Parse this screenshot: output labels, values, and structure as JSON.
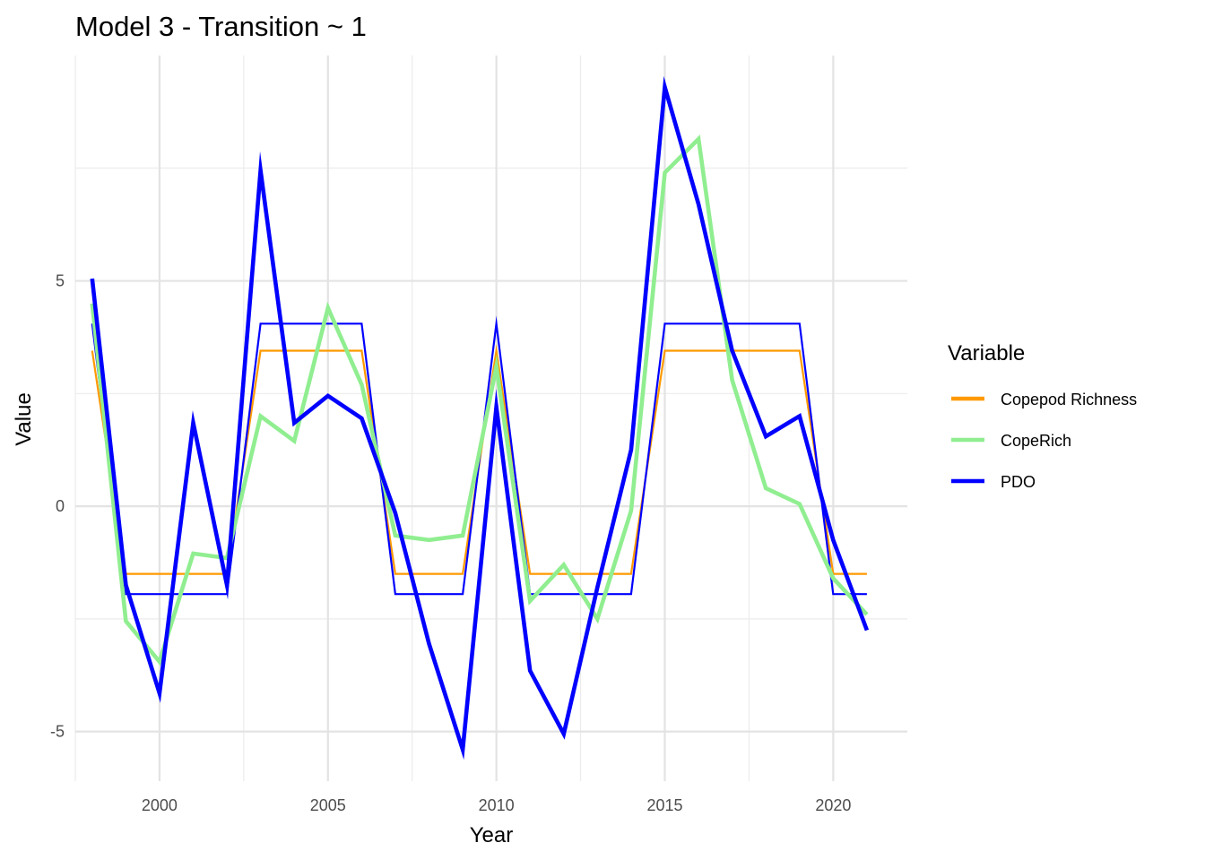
{
  "chart_data": {
    "type": "line",
    "title": "Model 3 - Transition ~ 1",
    "xlabel": "Year",
    "ylabel": "Value",
    "xlim": [
      1997.5,
      2022.2
    ],
    "ylim": [
      -6.1,
      10.0
    ],
    "x_ticks": [
      2000,
      2005,
      2010,
      2015,
      2020
    ],
    "x_tick_labels": [
      "2000",
      "2005",
      "2010",
      "2015",
      "2020"
    ],
    "y_ticks": [
      -5,
      0,
      5
    ],
    "y_tick_labels": [
      "-5",
      "0",
      "5"
    ],
    "grid": true,
    "legend": {
      "title": "Variable",
      "position": "right",
      "entries": [
        {
          "label": "Copepod Richness",
          "color": "#ff9900"
        },
        {
          "label": "CopeRich",
          "color": "#90ee90"
        },
        {
          "label": "PDO",
          "color": "#0000ff"
        }
      ]
    },
    "x": [
      1998,
      1999,
      2000,
      2001,
      2002,
      2003,
      2004,
      2005,
      2006,
      2007,
      2008,
      2009,
      2010,
      2011,
      2012,
      2013,
      2014,
      2015,
      2016,
      2017,
      2018,
      2019,
      2020,
      2021
    ],
    "series": [
      {
        "name": "Copepod Richness",
        "color": "#ff9900",
        "style": "thin-step",
        "values": [
          3.45,
          -1.5,
          -1.5,
          -1.5,
          -1.5,
          3.45,
          3.45,
          3.45,
          3.45,
          -1.5,
          -1.5,
          -1.5,
          3.45,
          -1.5,
          -1.5,
          -1.5,
          -1.5,
          3.45,
          3.45,
          3.45,
          3.45,
          3.45,
          -1.5,
          -1.5
        ]
      },
      {
        "name": "CopeRich",
        "color": "#90ee90",
        "style": "thick",
        "values": [
          4.5,
          -2.55,
          -3.45,
          -1.05,
          -1.15,
          2.0,
          1.45,
          4.4,
          2.7,
          -0.65,
          -0.75,
          -0.65,
          3.1,
          -2.1,
          -1.3,
          -2.5,
          -0.1,
          7.4,
          8.15,
          2.8,
          0.4,
          0.05,
          -1.6,
          -2.4
        ]
      },
      {
        "name": "PDO",
        "color": "#0000ff",
        "style": "thick",
        "values": [
          5.05,
          -1.75,
          -4.15,
          1.85,
          -1.75,
          7.45,
          1.85,
          2.45,
          1.95,
          -0.15,
          -3.05,
          -5.4,
          2.2,
          -3.65,
          -5.05,
          -1.8,
          1.25,
          9.3,
          6.7,
          3.45,
          1.55,
          2.0,
          -0.75,
          -2.75
        ]
      },
      {
        "name": "PDO",
        "color": "#0000ff",
        "style": "thin-step",
        "values": [
          4.05,
          -1.95,
          -1.95,
          -1.95,
          -1.95,
          4.05,
          4.05,
          4.05,
          4.05,
          -1.95,
          -1.95,
          -1.95,
          4.05,
          -1.95,
          -1.95,
          -1.95,
          -1.95,
          4.05,
          4.05,
          4.05,
          4.05,
          4.05,
          -1.95,
          -1.95
        ]
      }
    ]
  }
}
